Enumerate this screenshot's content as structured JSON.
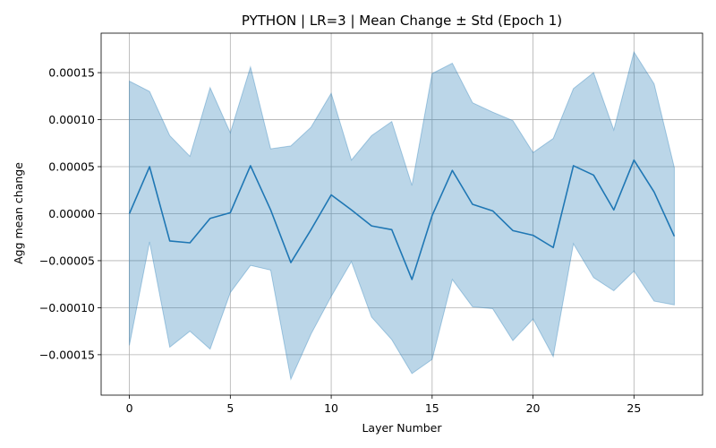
{
  "chart_data": {
    "type": "area",
    "title": "PYTHON | LR=3 | Mean Change ± Std (Epoch 1)",
    "xlabel": "Layer Number",
    "ylabel": "Agg mean change",
    "xlim": [
      -1.4,
      28.4
    ],
    "ylim": [
      -0.000193,
      0.000192
    ],
    "grid": true,
    "x": [
      0,
      1,
      2,
      3,
      4,
      5,
      6,
      7,
      8,
      9,
      10,
      11,
      12,
      13,
      14,
      15,
      16,
      17,
      18,
      19,
      20,
      21,
      22,
      23,
      24,
      25,
      26,
      27
    ],
    "series": [
      {
        "mean": [
          0.0,
          5e-05,
          -2.9e-05,
          -3.1e-05,
          -5e-06,
          1e-06,
          5.1e-05,
          4e-06,
          -5.2e-05,
          -1.7e-05,
          2e-05,
          4e-06,
          -1.3e-05,
          -1.7e-05,
          -7e-05,
          -2e-06,
          4.6e-05,
          1e-05,
          3e-06,
          -1.8e-05,
          -2.3e-05,
          -3.6e-05,
          5.1e-05,
          4.1e-05,
          4e-06,
          5.7e-05,
          2.3e-05,
          -2.4e-05
        ],
        "upper": [
          0.000141,
          0.00013,
          8.3e-05,
          6.1e-05,
          0.000134,
          8.6e-05,
          0.000156,
          6.9e-05,
          7.2e-05,
          9.2e-05,
          0.000128,
          5.7e-05,
          8.3e-05,
          9.8e-05,
          3e-05,
          0.000149,
          0.00016,
          0.000118,
          0.000108,
          9.9e-05,
          6.5e-05,
          8e-05,
          0.000133,
          0.00015,
          8.9e-05,
          0.000172,
          0.000138,
          4.9e-05
        ],
        "lower": [
          -0.00014,
          -3e-05,
          -0.000142,
          -0.000125,
          -0.000144,
          -8.4e-05,
          -5.5e-05,
          -6e-05,
          -0.000176,
          -0.000128,
          -8.8e-05,
          -5.1e-05,
          -0.00011,
          -0.000134,
          -0.00017,
          -0.000155,
          -7e-05,
          -9.9e-05,
          -0.000101,
          -0.000135,
          -0.000112,
          -0.000152,
          -3.2e-05,
          -6.8e-05,
          -8.2e-05,
          -6.1e-05,
          -9.3e-05,
          -9.7e-05
        ],
        "line_color": "#1f77b4",
        "fill_color": "#1f77b4"
      }
    ],
    "xticks": [
      0,
      5,
      10,
      15,
      20,
      25
    ],
    "xtick_labels": [
      "0",
      "5",
      "10",
      "15",
      "20",
      "25"
    ],
    "yticks": [
      -0.00015,
      -0.0001,
      -5e-05,
      0.0,
      5e-05,
      0.0001,
      0.00015
    ],
    "ytick_labels": [
      "−0.00015",
      "−0.00010",
      "−0.00005",
      "0.00000",
      "0.00005",
      "0.00010",
      "0.00015"
    ]
  }
}
